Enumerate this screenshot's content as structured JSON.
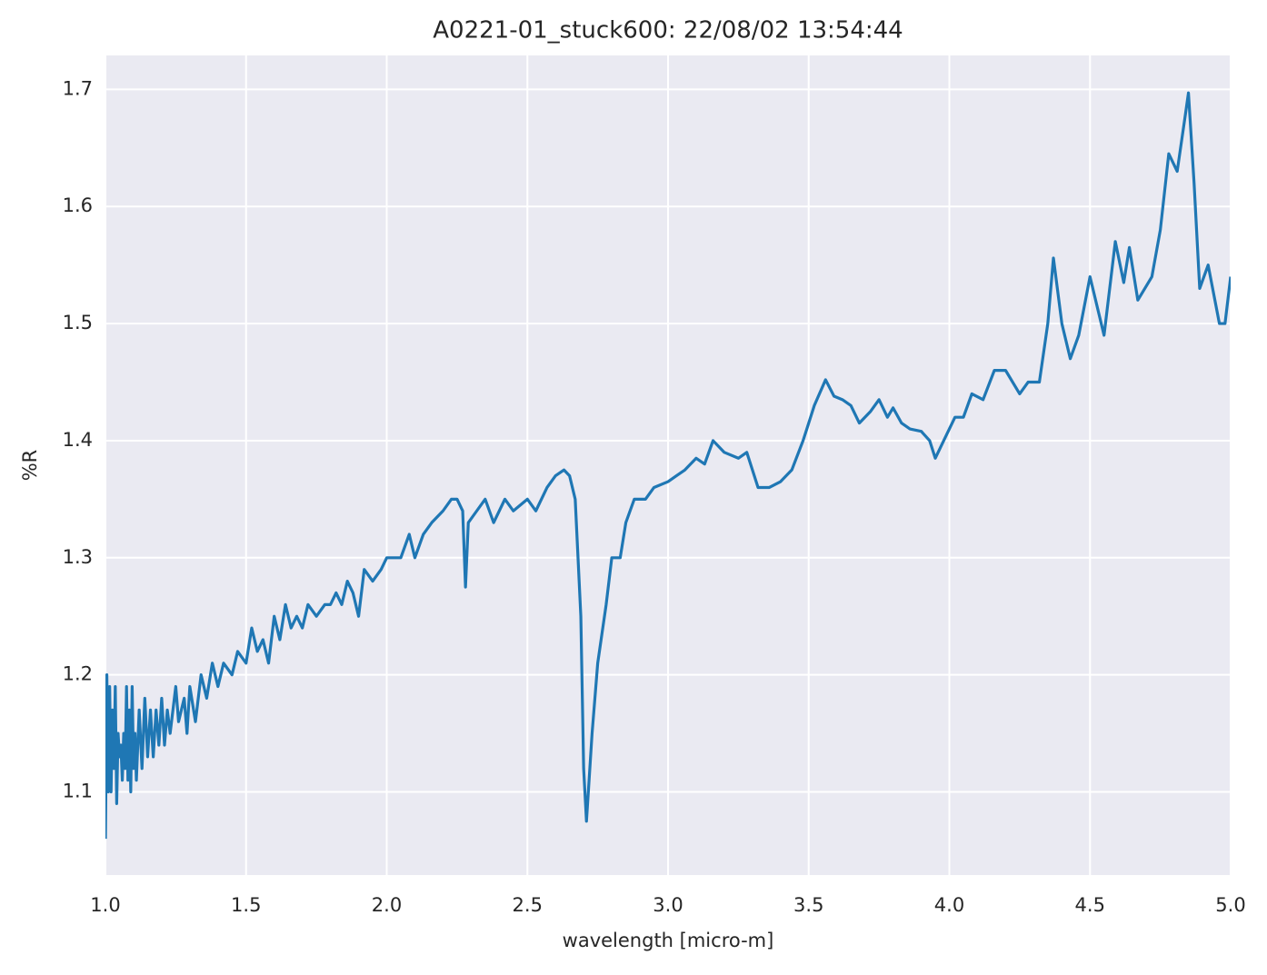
{
  "chart_data": {
    "type": "line",
    "title": "A0221-01_stuck600:  22/08/02 13:54:44",
    "xlabel": "wavelength [micro-m]",
    "ylabel": "%R",
    "xlim": [
      1.0,
      5.0
    ],
    "ylim": [
      1.029,
      1.729
    ],
    "xticks": [
      {
        "value": 1.0,
        "label": "1.0"
      },
      1.5,
      {
        "value": 2.0,
        "label": "2.0"
      },
      2.5,
      {
        "value": 3.0,
        "label": "3.0"
      },
      3.5,
      {
        "value": 4.0,
        "label": "4.0"
      },
      4.5,
      {
        "value": 5.0,
        "label": "5.0"
      }
    ],
    "yticks": [
      1.1,
      1.2,
      1.3,
      1.4,
      1.5,
      1.6,
      1.7
    ],
    "grid": true,
    "background": "#eaeaf2",
    "x": [
      1.0,
      1.005,
      1.01,
      1.015,
      1.02,
      1.025,
      1.03,
      1.035,
      1.04,
      1.045,
      1.05,
      1.055,
      1.06,
      1.065,
      1.07,
      1.075,
      1.08,
      1.085,
      1.09,
      1.095,
      1.1,
      1.105,
      1.11,
      1.12,
      1.13,
      1.14,
      1.15,
      1.16,
      1.17,
      1.18,
      1.19,
      1.2,
      1.21,
      1.22,
      1.23,
      1.25,
      1.26,
      1.28,
      1.29,
      1.3,
      1.32,
      1.34,
      1.36,
      1.38,
      1.4,
      1.42,
      1.45,
      1.47,
      1.5,
      1.52,
      1.54,
      1.56,
      1.58,
      1.6,
      1.62,
      1.64,
      1.66,
      1.68,
      1.7,
      1.72,
      1.75,
      1.78,
      1.8,
      1.82,
      1.84,
      1.86,
      1.88,
      1.9,
      1.92,
      1.95,
      1.98,
      2.0,
      2.05,
      2.08,
      2.1,
      2.13,
      2.16,
      2.2,
      2.23,
      2.25,
      2.27,
      2.28,
      2.29,
      2.32,
      2.35,
      2.38,
      2.42,
      2.45,
      2.5,
      2.53,
      2.57,
      2.6,
      2.63,
      2.65,
      2.67,
      2.69,
      2.7,
      2.71,
      2.73,
      2.75,
      2.78,
      2.8,
      2.83,
      2.85,
      2.88,
      2.92,
      2.95,
      3.0,
      3.03,
      3.06,
      3.1,
      3.13,
      3.16,
      3.2,
      3.25,
      3.28,
      3.32,
      3.36,
      3.4,
      3.44,
      3.48,
      3.52,
      3.56,
      3.59,
      3.62,
      3.65,
      3.68,
      3.72,
      3.75,
      3.78,
      3.8,
      3.83,
      3.86,
      3.9,
      3.93,
      3.95,
      3.98,
      4.02,
      4.05,
      4.08,
      4.12,
      4.16,
      4.2,
      4.25,
      4.28,
      4.32,
      4.35,
      4.37,
      4.4,
      4.43,
      4.46,
      4.5,
      4.53,
      4.55,
      4.59,
      4.62,
      4.64,
      4.67,
      4.72,
      4.75,
      4.78,
      4.81,
      4.84,
      4.85,
      4.87,
      4.89,
      4.92,
      4.96,
      4.98,
      5.0
    ],
    "series": [
      {
        "color": "#1f77b4",
        "values": [
          1.06,
          1.2,
          1.1,
          1.19,
          1.1,
          1.17,
          1.12,
          1.19,
          1.09,
          1.15,
          1.13,
          1.14,
          1.11,
          1.15,
          1.12,
          1.19,
          1.11,
          1.17,
          1.1,
          1.19,
          1.12,
          1.15,
          1.11,
          1.17,
          1.12,
          1.18,
          1.13,
          1.17,
          1.13,
          1.17,
          1.14,
          1.18,
          1.14,
          1.17,
          1.15,
          1.19,
          1.16,
          1.18,
          1.15,
          1.19,
          1.16,
          1.2,
          1.18,
          1.21,
          1.19,
          1.21,
          1.2,
          1.22,
          1.21,
          1.24,
          1.22,
          1.23,
          1.21,
          1.25,
          1.23,
          1.26,
          1.24,
          1.25,
          1.24,
          1.26,
          1.25,
          1.26,
          1.26,
          1.27,
          1.26,
          1.28,
          1.27,
          1.25,
          1.29,
          1.28,
          1.29,
          1.3,
          1.3,
          1.32,
          1.3,
          1.32,
          1.33,
          1.34,
          1.35,
          1.35,
          1.34,
          1.275,
          1.33,
          1.34,
          1.35,
          1.33,
          1.35,
          1.34,
          1.35,
          1.34,
          1.36,
          1.37,
          1.375,
          1.37,
          1.35,
          1.25,
          1.12,
          1.075,
          1.15,
          1.21,
          1.26,
          1.3,
          1.3,
          1.33,
          1.35,
          1.35,
          1.36,
          1.365,
          1.37,
          1.375,
          1.385,
          1.38,
          1.4,
          1.39,
          1.385,
          1.39,
          1.36,
          1.36,
          1.365,
          1.375,
          1.4,
          1.43,
          1.452,
          1.438,
          1.435,
          1.43,
          1.415,
          1.425,
          1.435,
          1.42,
          1.428,
          1.415,
          1.41,
          1.408,
          1.4,
          1.385,
          1.4,
          1.42,
          1.42,
          1.44,
          1.435,
          1.46,
          1.46,
          1.44,
          1.45,
          1.45,
          1.5,
          1.556,
          1.5,
          1.47,
          1.49,
          1.54,
          1.51,
          1.49,
          1.57,
          1.535,
          1.565,
          1.52,
          1.54,
          1.58,
          1.645,
          1.63,
          1.68,
          1.697,
          1.62,
          1.53,
          1.55,
          1.5,
          1.5,
          1.54
        ]
      }
    ]
  }
}
